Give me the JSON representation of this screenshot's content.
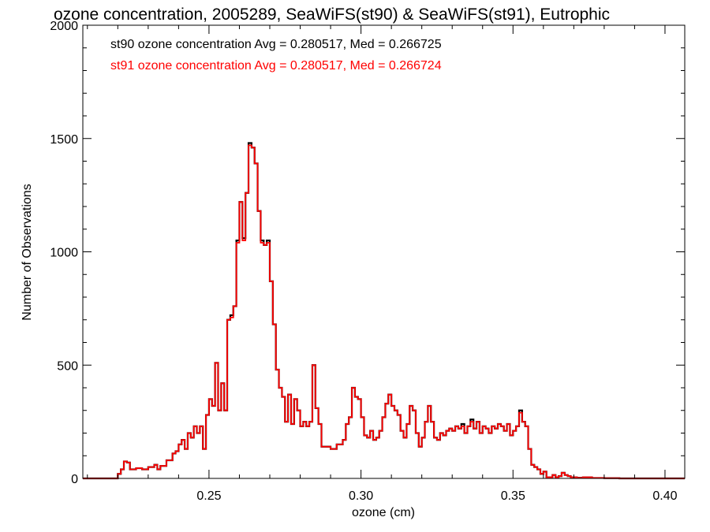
{
  "chart_data": {
    "type": "line",
    "title": "ozone concentration, 2005289, SeaWiFS(st90) & SeaWiFS(st91), Eutrophic",
    "xlabel": "ozone (cm)",
    "ylabel": "Number of Observations",
    "xlim": [
      0.2085,
      0.4065
    ],
    "ylim": [
      0,
      2000
    ],
    "x_ticks": [
      0.25,
      0.3,
      0.35,
      0.4
    ],
    "x_tick_labels": [
      "0.25",
      "0.30",
      "0.35",
      "0.40"
    ],
    "y_ticks": [
      0,
      500,
      1000,
      1500,
      2000
    ],
    "y_tick_labels": [
      "0",
      "500",
      "1000",
      "1500",
      "2000"
    ],
    "grid": false,
    "legend_position": "top-left",
    "series": [
      {
        "name": "st90 ozone concentration Avg = 0.280517, Med = 0.266725",
        "color": "#000000",
        "step": true,
        "points": [
          [
            0.2085,
            0
          ],
          [
            0.219,
            0
          ],
          [
            0.22,
            20
          ],
          [
            0.221,
            40
          ],
          [
            0.222,
            75
          ],
          [
            0.223,
            70
          ],
          [
            0.224,
            40
          ],
          [
            0.226,
            45
          ],
          [
            0.228,
            40
          ],
          [
            0.23,
            50
          ],
          [
            0.232,
            60
          ],
          [
            0.233,
            40
          ],
          [
            0.234,
            55
          ],
          [
            0.236,
            80
          ],
          [
            0.238,
            110
          ],
          [
            0.239,
            120
          ],
          [
            0.24,
            150
          ],
          [
            0.241,
            170
          ],
          [
            0.242,
            130
          ],
          [
            0.243,
            200
          ],
          [
            0.244,
            180
          ],
          [
            0.245,
            230
          ],
          [
            0.246,
            200
          ],
          [
            0.247,
            230
          ],
          [
            0.248,
            130
          ],
          [
            0.249,
            280
          ],
          [
            0.25,
            350
          ],
          [
            0.251,
            320
          ],
          [
            0.252,
            510
          ],
          [
            0.253,
            300
          ],
          [
            0.254,
            420
          ],
          [
            0.255,
            300
          ],
          [
            0.256,
            700
          ],
          [
            0.257,
            720
          ],
          [
            0.258,
            760
          ],
          [
            0.259,
            1050
          ],
          [
            0.26,
            1220
          ],
          [
            0.261,
            1060
          ],
          [
            0.262,
            1260
          ],
          [
            0.263,
            1480
          ],
          [
            0.264,
            1460
          ],
          [
            0.265,
            1390
          ],
          [
            0.266,
            1180
          ],
          [
            0.267,
            1050
          ],
          [
            0.268,
            1030
          ],
          [
            0.269,
            1050
          ],
          [
            0.27,
            870
          ],
          [
            0.271,
            680
          ],
          [
            0.272,
            480
          ],
          [
            0.273,
            400
          ],
          [
            0.274,
            360
          ],
          [
            0.275,
            250
          ],
          [
            0.276,
            370
          ],
          [
            0.277,
            240
          ],
          [
            0.278,
            350
          ],
          [
            0.279,
            300
          ],
          [
            0.28,
            230
          ],
          [
            0.281,
            250
          ],
          [
            0.282,
            230
          ],
          [
            0.283,
            250
          ],
          [
            0.284,
            500
          ],
          [
            0.285,
            310
          ],
          [
            0.286,
            240
          ],
          [
            0.287,
            140
          ],
          [
            0.288,
            140
          ],
          [
            0.29,
            130
          ],
          [
            0.292,
            150
          ],
          [
            0.294,
            170
          ],
          [
            0.295,
            240
          ],
          [
            0.296,
            270
          ],
          [
            0.297,
            400
          ],
          [
            0.298,
            360
          ],
          [
            0.299,
            350
          ],
          [
            0.3,
            270
          ],
          [
            0.301,
            190
          ],
          [
            0.302,
            180
          ],
          [
            0.303,
            210
          ],
          [
            0.304,
            170
          ],
          [
            0.305,
            180
          ],
          [
            0.306,
            210
          ],
          [
            0.307,
            270
          ],
          [
            0.308,
            330
          ],
          [
            0.309,
            370
          ],
          [
            0.31,
            320
          ],
          [
            0.311,
            300
          ],
          [
            0.312,
            280
          ],
          [
            0.313,
            210
          ],
          [
            0.314,
            180
          ],
          [
            0.315,
            240
          ],
          [
            0.316,
            320
          ],
          [
            0.317,
            300
          ],
          [
            0.318,
            200
          ],
          [
            0.319,
            140
          ],
          [
            0.32,
            180
          ],
          [
            0.321,
            250
          ],
          [
            0.322,
            320
          ],
          [
            0.323,
            250
          ],
          [
            0.324,
            180
          ],
          [
            0.325,
            170
          ],
          [
            0.326,
            200
          ],
          [
            0.327,
            190
          ],
          [
            0.328,
            210
          ],
          [
            0.329,
            220
          ],
          [
            0.33,
            210
          ],
          [
            0.331,
            230
          ],
          [
            0.332,
            220
          ],
          [
            0.333,
            240
          ],
          [
            0.334,
            200
          ],
          [
            0.335,
            230
          ],
          [
            0.336,
            260
          ],
          [
            0.337,
            220
          ],
          [
            0.338,
            250
          ],
          [
            0.339,
            200
          ],
          [
            0.34,
            230
          ],
          [
            0.341,
            220
          ],
          [
            0.342,
            200
          ],
          [
            0.343,
            230
          ],
          [
            0.344,
            220
          ],
          [
            0.345,
            240
          ],
          [
            0.346,
            230
          ],
          [
            0.347,
            210
          ],
          [
            0.348,
            240
          ],
          [
            0.349,
            190
          ],
          [
            0.35,
            210
          ],
          [
            0.351,
            230
          ],
          [
            0.352,
            300
          ],
          [
            0.353,
            250
          ],
          [
            0.354,
            230
          ],
          [
            0.355,
            130
          ],
          [
            0.356,
            60
          ],
          [
            0.357,
            50
          ],
          [
            0.358,
            40
          ],
          [
            0.359,
            20
          ],
          [
            0.36,
            30
          ],
          [
            0.361,
            5
          ],
          [
            0.362,
            5
          ],
          [
            0.363,
            15
          ],
          [
            0.364,
            5
          ],
          [
            0.365,
            10
          ],
          [
            0.366,
            25
          ],
          [
            0.367,
            15
          ],
          [
            0.368,
            10
          ],
          [
            0.369,
            5
          ],
          [
            0.371,
            3
          ],
          [
            0.373,
            5
          ],
          [
            0.376,
            2
          ],
          [
            0.38,
            1
          ],
          [
            0.385,
            0
          ],
          [
            0.4065,
            0
          ]
        ]
      },
      {
        "name": "st91 ozone concentration Avg = 0.280517, Med = 0.266724",
        "color": "#ff0000",
        "step": true,
        "points": [
          [
            0.2085,
            0
          ],
          [
            0.219,
            0
          ],
          [
            0.22,
            20
          ],
          [
            0.221,
            40
          ],
          [
            0.222,
            75
          ],
          [
            0.223,
            70
          ],
          [
            0.224,
            40
          ],
          [
            0.226,
            45
          ],
          [
            0.228,
            40
          ],
          [
            0.23,
            50
          ],
          [
            0.232,
            60
          ],
          [
            0.233,
            40
          ],
          [
            0.234,
            55
          ],
          [
            0.236,
            80
          ],
          [
            0.238,
            110
          ],
          [
            0.239,
            120
          ],
          [
            0.24,
            150
          ],
          [
            0.241,
            170
          ],
          [
            0.242,
            130
          ],
          [
            0.243,
            200
          ],
          [
            0.244,
            180
          ],
          [
            0.245,
            230
          ],
          [
            0.246,
            200
          ],
          [
            0.247,
            230
          ],
          [
            0.248,
            130
          ],
          [
            0.249,
            280
          ],
          [
            0.25,
            350
          ],
          [
            0.251,
            320
          ],
          [
            0.252,
            510
          ],
          [
            0.253,
            300
          ],
          [
            0.254,
            420
          ],
          [
            0.255,
            300
          ],
          [
            0.256,
            700
          ],
          [
            0.257,
            710
          ],
          [
            0.258,
            760
          ],
          [
            0.259,
            1040
          ],
          [
            0.26,
            1220
          ],
          [
            0.261,
            1050
          ],
          [
            0.262,
            1260
          ],
          [
            0.263,
            1470
          ],
          [
            0.264,
            1460
          ],
          [
            0.265,
            1390
          ],
          [
            0.266,
            1180
          ],
          [
            0.267,
            1040
          ],
          [
            0.268,
            1030
          ],
          [
            0.269,
            1040
          ],
          [
            0.27,
            870
          ],
          [
            0.271,
            680
          ],
          [
            0.272,
            480
          ],
          [
            0.273,
            400
          ],
          [
            0.274,
            360
          ],
          [
            0.275,
            250
          ],
          [
            0.276,
            370
          ],
          [
            0.277,
            240
          ],
          [
            0.278,
            350
          ],
          [
            0.279,
            300
          ],
          [
            0.28,
            230
          ],
          [
            0.281,
            250
          ],
          [
            0.282,
            230
          ],
          [
            0.283,
            250
          ],
          [
            0.284,
            500
          ],
          [
            0.285,
            310
          ],
          [
            0.286,
            240
          ],
          [
            0.287,
            140
          ],
          [
            0.288,
            140
          ],
          [
            0.29,
            130
          ],
          [
            0.292,
            150
          ],
          [
            0.294,
            170
          ],
          [
            0.295,
            240
          ],
          [
            0.296,
            270
          ],
          [
            0.297,
            400
          ],
          [
            0.298,
            360
          ],
          [
            0.299,
            350
          ],
          [
            0.3,
            270
          ],
          [
            0.301,
            190
          ],
          [
            0.302,
            180
          ],
          [
            0.303,
            210
          ],
          [
            0.304,
            170
          ],
          [
            0.305,
            180
          ],
          [
            0.306,
            210
          ],
          [
            0.307,
            270
          ],
          [
            0.308,
            330
          ],
          [
            0.309,
            370
          ],
          [
            0.31,
            320
          ],
          [
            0.311,
            300
          ],
          [
            0.312,
            280
          ],
          [
            0.313,
            210
          ],
          [
            0.314,
            180
          ],
          [
            0.315,
            240
          ],
          [
            0.316,
            320
          ],
          [
            0.317,
            300
          ],
          [
            0.318,
            200
          ],
          [
            0.319,
            140
          ],
          [
            0.32,
            180
          ],
          [
            0.321,
            250
          ],
          [
            0.322,
            320
          ],
          [
            0.323,
            250
          ],
          [
            0.324,
            180
          ],
          [
            0.325,
            170
          ],
          [
            0.326,
            200
          ],
          [
            0.327,
            190
          ],
          [
            0.328,
            210
          ],
          [
            0.329,
            220
          ],
          [
            0.33,
            210
          ],
          [
            0.331,
            230
          ],
          [
            0.332,
            220
          ],
          [
            0.333,
            230
          ],
          [
            0.334,
            200
          ],
          [
            0.335,
            230
          ],
          [
            0.336,
            250
          ],
          [
            0.337,
            220
          ],
          [
            0.338,
            250
          ],
          [
            0.339,
            200
          ],
          [
            0.34,
            230
          ],
          [
            0.341,
            220
          ],
          [
            0.342,
            200
          ],
          [
            0.343,
            230
          ],
          [
            0.344,
            220
          ],
          [
            0.345,
            240
          ],
          [
            0.346,
            230
          ],
          [
            0.347,
            210
          ],
          [
            0.348,
            240
          ],
          [
            0.349,
            190
          ],
          [
            0.35,
            210
          ],
          [
            0.351,
            230
          ],
          [
            0.352,
            290
          ],
          [
            0.353,
            250
          ],
          [
            0.354,
            230
          ],
          [
            0.355,
            130
          ],
          [
            0.356,
            60
          ],
          [
            0.357,
            50
          ],
          [
            0.358,
            40
          ],
          [
            0.359,
            20
          ],
          [
            0.36,
            30
          ],
          [
            0.361,
            5
          ],
          [
            0.362,
            5
          ],
          [
            0.363,
            15
          ],
          [
            0.364,
            5
          ],
          [
            0.365,
            10
          ],
          [
            0.366,
            25
          ],
          [
            0.367,
            15
          ],
          [
            0.368,
            10
          ],
          [
            0.369,
            5
          ],
          [
            0.371,
            3
          ],
          [
            0.373,
            5
          ],
          [
            0.376,
            2
          ],
          [
            0.38,
            1
          ],
          [
            0.385,
            0
          ],
          [
            0.4065,
            0
          ]
        ]
      }
    ]
  }
}
